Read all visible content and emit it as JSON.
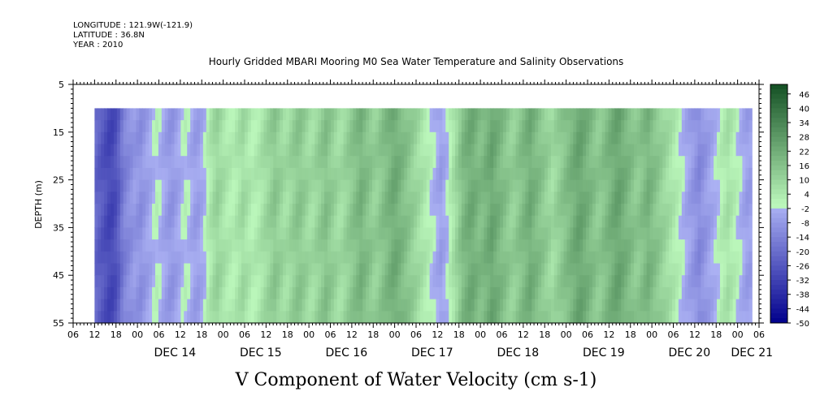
{
  "header": {
    "longitude": "LONGITUDE : 121.9W(-121.9)",
    "latitude": "LATITUDE : 36.8N",
    "year": "YEAR : 2010"
  },
  "chart_data": {
    "type": "heatmap",
    "title": "Hourly Gridded MBARI Mooring M0 Sea Water Temperature and Salinity Observations",
    "xlabel": "V Component of Water Velocity (cm s-1)",
    "ylabel": "DEPTH (m)",
    "ylim": [
      5,
      55
    ],
    "y_inverted": true,
    "yticks": [
      5,
      15,
      25,
      35,
      45,
      55
    ],
    "data_depth_range": [
      10,
      55
    ],
    "x_start": "2010-12-13 06:00",
    "x_end": "2010-12-21 06:00",
    "data_start": "2010-12-13 12:00",
    "data_end": "2010-12-21 04:00",
    "hour_tick_labels": [
      "06",
      "12",
      "18",
      "00",
      "06",
      "12",
      "18",
      "00",
      "06",
      "12",
      "18",
      "00",
      "06",
      "12",
      "18",
      "00",
      "06",
      "12",
      "18",
      "00",
      "06",
      "12",
      "18",
      "00",
      "06",
      "12",
      "18",
      "00",
      "06",
      "12",
      "18",
      "00",
      "06"
    ],
    "day_labels": [
      "DEC 14",
      "DEC 15",
      "DEC 16",
      "DEC 17",
      "DEC 18",
      "DEC 19",
      "DEC 20",
      "DEC 21"
    ],
    "colorbar": {
      "min": -50,
      "max": 50,
      "labels": [
        46,
        40,
        34,
        28,
        22,
        16,
        10,
        4,
        -2,
        -8,
        -14,
        -20,
        -26,
        -32,
        -38,
        -44,
        -50
      ]
    },
    "column_values": [
      -22,
      -24,
      -26,
      -28,
      -30,
      -30,
      -28,
      -24,
      -18,
      -14,
      -12,
      -10,
      -8,
      -9,
      -10,
      -8,
      -6,
      -4,
      -2,
      0,
      -2,
      -4,
      -6,
      -8,
      -8,
      -6,
      -4,
      -2,
      0,
      -2,
      -4,
      -6,
      -6,
      -4,
      -2,
      2,
      5,
      8,
      10,
      8,
      6,
      4,
      3,
      2,
      4,
      6,
      8,
      6,
      4,
      2,
      3,
      4,
      6,
      8,
      10,
      12,
      14,
      12,
      10,
      8,
      8,
      10,
      12,
      14,
      14,
      12,
      10,
      8,
      8,
      10,
      12,
      14,
      16,
      14,
      12,
      10,
      8,
      8,
      10,
      12,
      14,
      16,
      18,
      20,
      18,
      16,
      14,
      12,
      12,
      14,
      16,
      18,
      20,
      22,
      22,
      20,
      18,
      16,
      14,
      12,
      10,
      8,
      6,
      4,
      2,
      0,
      -2,
      -4,
      -6,
      -4,
      -2,
      2,
      6,
      10,
      14,
      18,
      20,
      22,
      22,
      20,
      18,
      18,
      20,
      22,
      24,
      22,
      20,
      18,
      16,
      14,
      12,
      12,
      14,
      16,
      18,
      20,
      22,
      20,
      18,
      16,
      14,
      12,
      10,
      8,
      10,
      12,
      14,
      16,
      18,
      20,
      22,
      24,
      24,
      22,
      20,
      18,
      16,
      14,
      14,
      16,
      18,
      20,
      22,
      24,
      24,
      22,
      20,
      18,
      16,
      14,
      14,
      16,
      18,
      20,
      18,
      16,
      14,
      12,
      10,
      8,
      6,
      4,
      2,
      0,
      -2,
      -4,
      -6,
      -8,
      -10,
      -12,
      -10,
      -8,
      -6,
      -4,
      -2,
      0,
      2,
      4,
      6,
      4,
      2,
      0,
      -2,
      -4,
      -6,
      -6
    ]
  }
}
